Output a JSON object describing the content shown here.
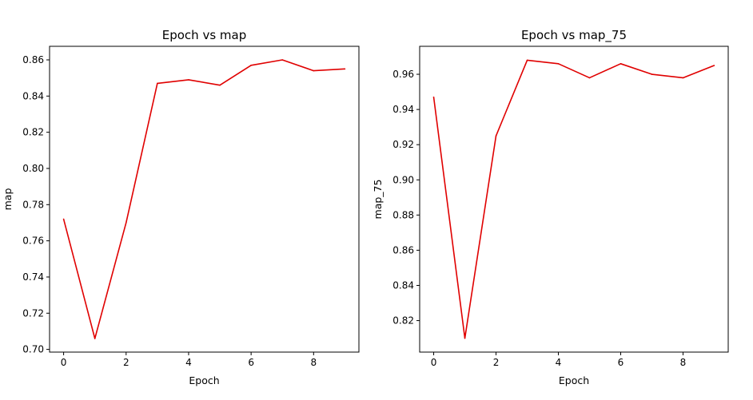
{
  "chart_data": [
    {
      "type": "line",
      "title": "Epoch vs map",
      "xlabel": "Epoch",
      "ylabel": "map",
      "x": [
        0,
        1,
        2,
        3,
        4,
        5,
        6,
        7,
        8,
        9
      ],
      "series": [
        {
          "values": [
            0.772,
            0.706,
            0.77,
            0.847,
            0.849,
            0.846,
            0.857,
            0.86,
            0.854,
            0.855
          ],
          "color": "#e00000"
        }
      ],
      "xlim": [
        -0.45,
        9.45
      ],
      "ylim": [
        0.6985,
        0.8675
      ],
      "xticks": [
        0,
        2,
        4,
        6,
        8
      ],
      "xtick_labels": [
        "0",
        "2",
        "4",
        "6",
        "8"
      ],
      "yticks": [
        0.7,
        0.72,
        0.74,
        0.76,
        0.78,
        0.8,
        0.82,
        0.84,
        0.86
      ],
      "ytick_labels": [
        "0.70",
        "0.72",
        "0.74",
        "0.76",
        "0.78",
        "0.80",
        "0.82",
        "0.84",
        "0.86"
      ],
      "grid": false,
      "legend": "none"
    },
    {
      "type": "line",
      "title": "Epoch vs map_75",
      "xlabel": "Epoch",
      "ylabel": "map_75",
      "x": [
        0,
        1,
        2,
        3,
        4,
        5,
        6,
        7,
        8,
        9
      ],
      "series": [
        {
          "values": [
            0.947,
            0.81,
            0.925,
            0.968,
            0.966,
            0.958,
            0.966,
            0.96,
            0.958,
            0.965
          ],
          "color": "#e00000"
        }
      ],
      "xlim": [
        -0.45,
        9.45
      ],
      "ylim": [
        0.8021,
        0.9759
      ],
      "xticks": [
        0,
        2,
        4,
        6,
        8
      ],
      "xtick_labels": [
        "0",
        "2",
        "4",
        "6",
        "8"
      ],
      "yticks": [
        0.82,
        0.84,
        0.86,
        0.88,
        0.9,
        0.92,
        0.94,
        0.96
      ],
      "ytick_labels": [
        "0.82",
        "0.84",
        "0.86",
        "0.88",
        "0.90",
        "0.92",
        "0.94",
        "0.96"
      ],
      "grid": false,
      "legend": "none"
    }
  ]
}
